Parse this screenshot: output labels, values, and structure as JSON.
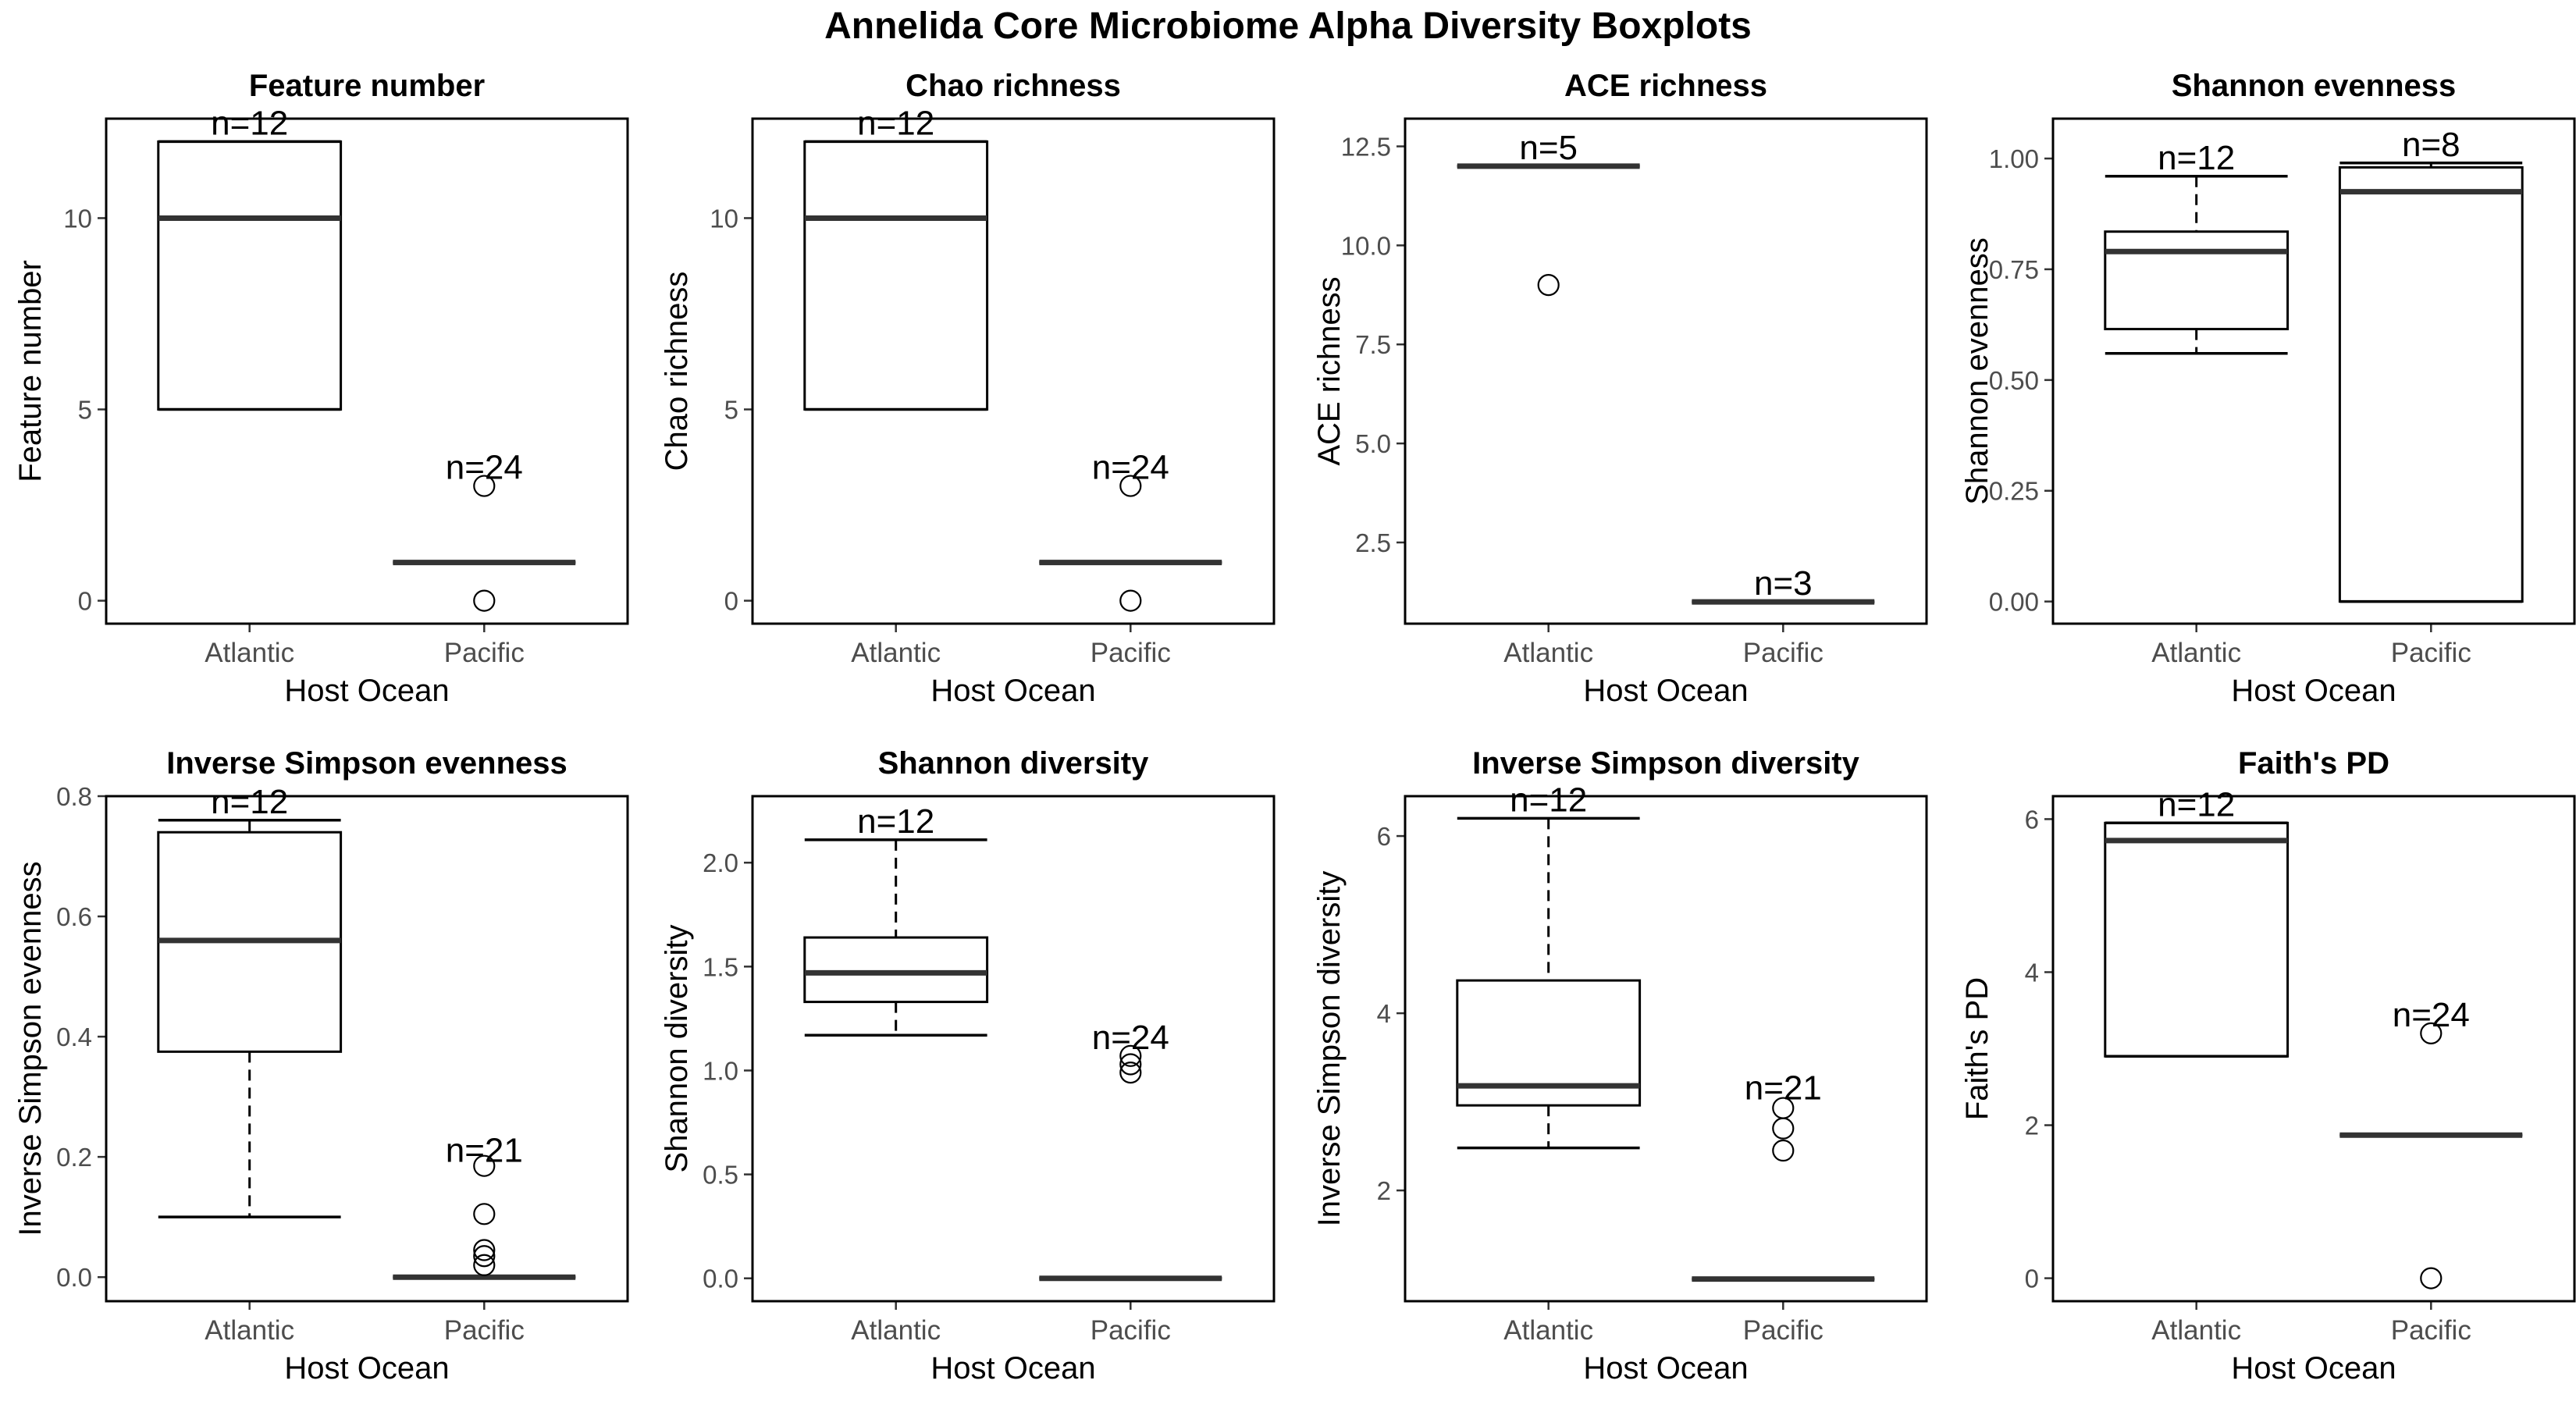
{
  "figure": {
    "title": "Annelida Core Microbiome Alpha Diversity Boxplots"
  },
  "chart_data": [
    {
      "type": "boxplot",
      "title": "Feature number",
      "xlabel": "Host Ocean",
      "ylabel": "Feature number",
      "categories": [
        "Atlantic",
        "Pacific"
      ],
      "ylim": [
        -0.6,
        12.6
      ],
      "yticks": [
        0,
        5,
        10
      ],
      "ytick_labels": [
        "0",
        "5",
        "10"
      ],
      "boxes": [
        {
          "category": "Atlantic",
          "n_label": "n=12",
          "n_y": 12.0,
          "whisker_low": 5,
          "q1": 5,
          "median": 10,
          "q3": 12,
          "whisker_high": 12,
          "outliers": []
        },
        {
          "category": "Pacific",
          "n_label": "n=24",
          "n_y": 3.0,
          "whisker_low": 1,
          "q1": 1,
          "median": 1,
          "q3": 1,
          "whisker_high": 1,
          "outliers": [
            3,
            0
          ]
        }
      ]
    },
    {
      "type": "boxplot",
      "title": "Chao richness",
      "xlabel": "Host Ocean",
      "ylabel": "Chao richness",
      "categories": [
        "Atlantic",
        "Pacific"
      ],
      "ylim": [
        -0.6,
        12.6
      ],
      "yticks": [
        0,
        5,
        10
      ],
      "ytick_labels": [
        "0",
        "5",
        "10"
      ],
      "boxes": [
        {
          "category": "Atlantic",
          "n_label": "n=12",
          "n_y": 12.0,
          "whisker_low": 5,
          "q1": 5,
          "median": 10,
          "q3": 12,
          "whisker_high": 12,
          "outliers": []
        },
        {
          "category": "Pacific",
          "n_label": "n=24",
          "n_y": 3.0,
          "whisker_low": 1,
          "q1": 1,
          "median": 1,
          "q3": 1,
          "whisker_high": 1,
          "outliers": [
            3,
            0
          ]
        }
      ]
    },
    {
      "type": "boxplot",
      "title": "ACE richness",
      "xlabel": "Host Ocean",
      "ylabel": "ACE richness",
      "categories": [
        "Atlantic",
        "Pacific"
      ],
      "ylim": [
        0.45,
        13.2
      ],
      "yticks": [
        2.5,
        5.0,
        7.5,
        10.0,
        12.5
      ],
      "ytick_labels": [
        "2.5",
        "5.0",
        "7.5",
        "10.0",
        "12.5"
      ],
      "boxes": [
        {
          "category": "Atlantic",
          "n_label": "n=5",
          "n_y": 12.0,
          "whisker_low": 12,
          "q1": 12,
          "median": 12,
          "q3": 12,
          "whisker_high": 12,
          "outliers": [
            9
          ]
        },
        {
          "category": "Pacific",
          "n_label": "n=3",
          "n_y": 1.0,
          "whisker_low": 1,
          "q1": 1,
          "median": 1,
          "q3": 1,
          "whisker_high": 1,
          "outliers": []
        }
      ]
    },
    {
      "type": "boxplot",
      "title": "Shannon evenness",
      "xlabel": "Host Ocean",
      "ylabel": "Shannon evenness",
      "categories": [
        "Atlantic",
        "Pacific"
      ],
      "ylim": [
        -0.05,
        1.09
      ],
      "yticks": [
        0.0,
        0.25,
        0.5,
        0.75,
        1.0
      ],
      "ytick_labels": [
        "0.00",
        "0.25",
        "0.50",
        "0.75",
        "1.00"
      ],
      "boxes": [
        {
          "category": "Atlantic",
          "n_label": "n=12",
          "n_y": 0.96,
          "whisker_low": 0.56,
          "q1": 0.615,
          "median": 0.79,
          "q3": 0.835,
          "whisker_high": 0.96,
          "outliers": []
        },
        {
          "category": "Pacific",
          "n_label": "n=8",
          "n_y": 0.99,
          "whisker_low": 0.0,
          "q1": 0.0,
          "median": 0.925,
          "q3": 0.98,
          "whisker_high": 0.99,
          "outliers": []
        }
      ]
    },
    {
      "type": "boxplot",
      "title": "Inverse Simpson evenness",
      "xlabel": "Host Ocean",
      "ylabel": "Inverse Simpson evenness",
      "categories": [
        "Atlantic",
        "Pacific"
      ],
      "ylim": [
        -0.04,
        0.8
      ],
      "yticks": [
        0.0,
        0.2,
        0.4,
        0.6,
        0.8
      ],
      "ytick_labels": [
        "0.0",
        "0.2",
        "0.4",
        "0.6",
        "0.8"
      ],
      "boxes": [
        {
          "category": "Atlantic",
          "n_label": "n=12",
          "n_y": 0.76,
          "whisker_low": 0.1,
          "q1": 0.375,
          "median": 0.56,
          "q3": 0.74,
          "whisker_high": 0.76,
          "outliers": []
        },
        {
          "category": "Pacific",
          "n_label": "n=21",
          "n_y": 0.18,
          "whisker_low": 0.0,
          "q1": 0.0,
          "median": 0.0,
          "q3": 0.0,
          "whisker_high": 0.0,
          "outliers": [
            0.185,
            0.105,
            0.045,
            0.035,
            0.02
          ]
        }
      ]
    },
    {
      "type": "boxplot",
      "title": "Shannon diversity",
      "xlabel": "Host Ocean",
      "ylabel": "Shannon diversity",
      "categories": [
        "Atlantic",
        "Pacific"
      ],
      "ylim": [
        -0.11,
        2.32
      ],
      "yticks": [
        0.0,
        0.5,
        1.0,
        1.5,
        2.0
      ],
      "ytick_labels": [
        "0.0",
        "0.5",
        "1.0",
        "1.5",
        "2.0"
      ],
      "boxes": [
        {
          "category": "Atlantic",
          "n_label": "n=12",
          "n_y": 2.11,
          "whisker_low": 1.17,
          "q1": 1.33,
          "median": 1.47,
          "q3": 1.64,
          "whisker_high": 2.11,
          "outliers": []
        },
        {
          "category": "Pacific",
          "n_label": "n=24",
          "n_y": 1.07,
          "whisker_low": 0.0,
          "q1": 0.0,
          "median": 0.0,
          "q3": 0.0,
          "whisker_high": 0.0,
          "outliers": [
            1.07,
            1.03,
            0.99
          ]
        }
      ]
    },
    {
      "type": "boxplot",
      "title": "Inverse Simpson diversity",
      "xlabel": "Host Ocean",
      "ylabel": "Inverse Simpson diversity",
      "categories": [
        "Atlantic",
        "Pacific"
      ],
      "ylim": [
        0.75,
        6.45
      ],
      "yticks": [
        2,
        4,
        6
      ],
      "ytick_labels": [
        "2",
        "4",
        "6"
      ],
      "boxes": [
        {
          "category": "Atlantic",
          "n_label": "n=12",
          "n_y": 6.2,
          "whisker_low": 2.48,
          "q1": 2.96,
          "median": 3.18,
          "q3": 4.37,
          "whisker_high": 6.2,
          "outliers": []
        },
        {
          "category": "Pacific",
          "n_label": "n=21",
          "n_y": 2.95,
          "whisker_low": 1.0,
          "q1": 1.0,
          "median": 1.0,
          "q3": 1.0,
          "whisker_high": 1.0,
          "outliers": [
            2.93,
            2.7,
            2.45
          ]
        }
      ]
    },
    {
      "type": "boxplot",
      "title": "Faith's PD",
      "xlabel": "Host Ocean",
      "ylabel": "Faith's PD",
      "categories": [
        "Atlantic",
        "Pacific"
      ],
      "ylim": [
        -0.3,
        6.3
      ],
      "yticks": [
        0,
        2,
        4,
        6
      ],
      "ytick_labels": [
        "0",
        "2",
        "4",
        "6"
      ],
      "boxes": [
        {
          "category": "Atlantic",
          "n_label": "n=12",
          "n_y": 5.95,
          "whisker_low": 2.9,
          "q1": 2.9,
          "median": 5.72,
          "q3": 5.95,
          "whisker_high": 5.95,
          "outliers": []
        },
        {
          "category": "Pacific",
          "n_label": "n=24",
          "n_y": 3.2,
          "whisker_low": 1.87,
          "q1": 1.87,
          "median": 1.87,
          "q3": 1.87,
          "whisker_high": 1.87,
          "outliers": [
            3.2,
            0.0
          ]
        }
      ]
    }
  ]
}
